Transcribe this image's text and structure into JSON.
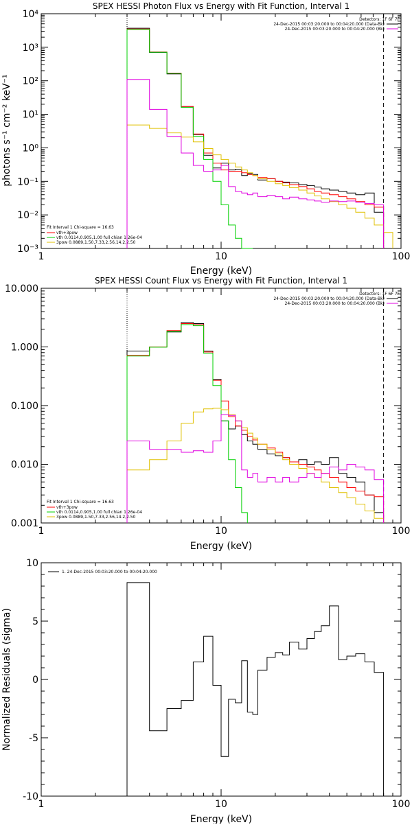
{
  "colors": {
    "black": "#000000",
    "red": "#ff0000",
    "magenta": "#e000e0",
    "green": "#00d000",
    "yellow": "#e0c000"
  },
  "chart_data": [
    {
      "type": "line",
      "title": "SPEX HESSI Photon Flux vs Energy with Fit Function, Interval 1",
      "xlabel": "Energy (keV)",
      "ylabel": "photons s⁻¹ cm⁻² keV⁻¹",
      "xscale": "log",
      "yscale": "log",
      "xlim": [
        1,
        100
      ],
      "ylim": [
        0.001,
        10000
      ],
      "xticks": [
        "1",
        "10",
        "100"
      ],
      "yticks": [
        "10⁻³",
        "10⁻²",
        "10⁻¹",
        "10⁰",
        "10¹",
        "10²",
        "10³",
        "10⁴"
      ],
      "legend_header": "Detectors: 1F 6F 7F",
      "legend": [
        {
          "text": "24-Dec-2015 00:03:20.000 to 00:04:20.000 (Data-Bk)",
          "color": "black"
        },
        {
          "text": "24-Dec-2015 00:03:20.000 to 00:04:20.000 (Bk)",
          "color": "magenta"
        }
      ],
      "fit_info": {
        "line1": "Fit Interval 1   Chi-square = 16.63",
        "items": [
          {
            "text": "vth+3pow",
            "color": "red"
          },
          {
            "text": "vth 0.0114,0.905,1.00  full chian 1.26e-04",
            "color": "green"
          },
          {
            "text": "3pow 0.0889,1.50,7.33,2.56,14.2,2.50",
            "color": "yellow"
          }
        ]
      },
      "vlines": [
        {
          "x": 3,
          "style": "dotted"
        },
        {
          "x": 80,
          "style": "dashed"
        }
      ],
      "series": [
        {
          "name": "Data-Bk",
          "color": "black",
          "edges": [
            3,
            4,
            5,
            6,
            7,
            8,
            9,
            10,
            11,
            12,
            13,
            14,
            15,
            16,
            18,
            20,
            22,
            24,
            27,
            30,
            33,
            36,
            40,
            45,
            50,
            56,
            63,
            71,
            80
          ],
          "values": [
            3700,
            700,
            160,
            17,
            2.5,
            0.6,
            0.25,
            0.35,
            0.22,
            0.23,
            0.15,
            0.17,
            0.16,
            0.11,
            0.12,
            0.1,
            0.095,
            0.09,
            0.08,
            0.075,
            0.068,
            0.06,
            0.055,
            0.05,
            0.045,
            0.04,
            0.045,
            0.012
          ]
        },
        {
          "name": "vth+3pow",
          "color": "red",
          "edges": [
            3,
            4,
            5,
            6,
            7,
            8,
            9,
            10,
            11,
            12,
            13,
            14,
            15,
            16,
            18,
            20,
            22,
            24,
            27,
            30,
            33,
            36,
            40,
            45,
            50,
            56,
            63,
            71,
            80
          ],
          "values": [
            3500,
            720,
            170,
            17,
            2.6,
            0.7,
            0.35,
            0.22,
            0.2,
            0.2,
            0.18,
            0.16,
            0.15,
            0.13,
            0.12,
            0.1,
            0.09,
            0.08,
            0.07,
            0.06,
            0.05,
            0.045,
            0.04,
            0.035,
            0.03,
            0.025,
            0.02,
            0.017
          ]
        },
        {
          "name": "vth",
          "color": "green",
          "edges": [
            3,
            4,
            5,
            6,
            7,
            8,
            9,
            10,
            11,
            12,
            13,
            14,
            15
          ],
          "values": [
            3400,
            710,
            165,
            16,
            2.2,
            0.45,
            0.1,
            0.02,
            0.005,
            0.002,
            0.001,
            0.0008
          ]
        },
        {
          "name": "3pow",
          "color": "yellow",
          "edges": [
            3,
            4,
            5,
            6,
            7,
            8,
            9,
            10,
            11,
            12,
            13,
            14,
            15,
            16,
            18,
            20,
            22,
            24,
            27,
            30,
            33,
            36,
            40,
            45,
            50,
            56,
            63,
            71,
            80,
            90
          ],
          "values": [
            4.8,
            3.8,
            2.8,
            2.1,
            1.5,
            0.95,
            0.62,
            0.45,
            0.35,
            0.27,
            0.22,
            0.18,
            0.15,
            0.12,
            0.1,
            0.085,
            0.075,
            0.065,
            0.055,
            0.045,
            0.037,
            0.03,
            0.025,
            0.02,
            0.016,
            0.012,
            0.008,
            0.005,
            0.003
          ]
        },
        {
          "name": "Bk",
          "color": "magenta",
          "edges": [
            3,
            4,
            5,
            6,
            7,
            8,
            9,
            10,
            11,
            12,
            13,
            14,
            15,
            16,
            18,
            20,
            22,
            24,
            27,
            30,
            33,
            36,
            40,
            45,
            50,
            56,
            63,
            71,
            80
          ],
          "values": [
            110,
            14,
            2.2,
            0.7,
            0.3,
            0.2,
            0.22,
            0.3,
            0.07,
            0.05,
            0.045,
            0.04,
            0.045,
            0.035,
            0.038,
            0.035,
            0.03,
            0.034,
            0.03,
            0.028,
            0.026,
            0.024,
            0.026,
            0.025,
            0.026,
            0.024,
            0.022,
            0.02
          ]
        }
      ]
    },
    {
      "type": "line",
      "title": "SPEX HESSI Count Flux vs Energy with Fit Function, Interval 1",
      "xlabel": "Energy (keV)",
      "xscale": "log",
      "yscale": "log",
      "xlim": [
        1,
        100
      ],
      "ylim": [
        0.001,
        10
      ],
      "xticks": [
        "1",
        "10",
        "100"
      ],
      "yticks": [
        "0.001",
        "0.010",
        "0.100",
        "1.000",
        "10.000"
      ],
      "legend_header": "Detectors: 1F 6F 7F",
      "legend": [
        {
          "text": "24-Dec-2015 00:03:20.000 to 00:04:20.000 (Data-Bk)",
          "color": "black"
        },
        {
          "text": "24-Dec-2015 00:03:20.000 to 00:04:20.000 (Bk)",
          "color": "magenta"
        }
      ],
      "fit_info": {
        "line1": "Fit Interval 1   Chi-square = 16.63",
        "items": [
          {
            "text": "vth+3pow",
            "color": "red"
          },
          {
            "text": "vth 0.0114,0.905,1.00  full chian 1.26e-04",
            "color": "green"
          },
          {
            "text": "3pow 0.0889,1.50,7.33,2.56,14.2,2.50",
            "color": "yellow"
          }
        ]
      },
      "vlines": [
        {
          "x": 3,
          "style": "dotted"
        },
        {
          "x": 80,
          "style": "dashed"
        }
      ],
      "series": [
        {
          "name": "Data-Bk",
          "color": "black",
          "edges": [
            3,
            4,
            5,
            6,
            7,
            8,
            9,
            10,
            11,
            12,
            13,
            14,
            15,
            16,
            18,
            20,
            22,
            24,
            27,
            30,
            33,
            36,
            40,
            45,
            50,
            56,
            63,
            71,
            80
          ],
          "values": [
            0.85,
            1.0,
            1.8,
            2.6,
            2.5,
            0.85,
            0.28,
            0.055,
            0.04,
            0.045,
            0.032,
            0.025,
            0.022,
            0.018,
            0.015,
            0.014,
            0.013,
            0.011,
            0.012,
            0.01,
            0.011,
            0.01,
            0.013,
            0.007,
            0.006,
            0.005,
            0.003,
            0.0015
          ]
        },
        {
          "name": "vth+3pow",
          "color": "red",
          "edges": [
            3,
            4,
            5,
            6,
            7,
            8,
            9,
            10,
            11,
            12,
            13,
            14,
            15,
            16,
            18,
            20,
            22,
            24,
            27,
            30,
            33,
            36,
            40,
            45,
            50,
            56,
            63,
            71,
            80
          ],
          "values": [
            0.72,
            1.0,
            1.9,
            2.5,
            2.4,
            0.82,
            0.27,
            0.12,
            0.065,
            0.045,
            0.038,
            0.03,
            0.026,
            0.022,
            0.019,
            0.016,
            0.013,
            0.011,
            0.01,
            0.009,
            0.008,
            0.007,
            0.006,
            0.005,
            0.004,
            0.0035,
            0.003,
            0.0028
          ]
        },
        {
          "name": "vth",
          "color": "green",
          "edges": [
            3,
            4,
            5,
            6,
            7,
            8,
            9,
            10,
            11,
            12,
            13,
            14
          ],
          "values": [
            0.7,
            0.99,
            1.85,
            2.4,
            2.3,
            0.78,
            0.22,
            0.055,
            0.012,
            0.004,
            0.0015
          ]
        },
        {
          "name": "3pow",
          "color": "yellow",
          "edges": [
            3,
            4,
            5,
            6,
            7,
            8,
            9,
            10,
            11,
            12,
            13,
            14,
            15,
            16,
            18,
            20,
            22,
            24,
            27,
            30,
            33,
            36,
            40,
            45,
            50,
            56,
            63,
            71,
            80
          ],
          "values": [
            0.008,
            0.012,
            0.025,
            0.05,
            0.078,
            0.088,
            0.09,
            0.085,
            0.07,
            0.055,
            0.042,
            0.034,
            0.028,
            0.022,
            0.018,
            0.015,
            0.012,
            0.01,
            0.0085,
            0.007,
            0.006,
            0.005,
            0.004,
            0.0033,
            0.0027,
            0.0021,
            0.0016,
            0.0012
          ]
        },
        {
          "name": "Bk",
          "color": "magenta",
          "edges": [
            3,
            4,
            5,
            6,
            7,
            8,
            9,
            10,
            11,
            12,
            13,
            14,
            15,
            16,
            18,
            20,
            22,
            24,
            27,
            30,
            33,
            36,
            40,
            45,
            50,
            56,
            63,
            71,
            80
          ],
          "values": [
            0.025,
            0.018,
            0.018,
            0.016,
            0.017,
            0.016,
            0.025,
            0.07,
            0.068,
            0.055,
            0.008,
            0.006,
            0.007,
            0.005,
            0.006,
            0.005,
            0.006,
            0.005,
            0.006,
            0.007,
            0.006,
            0.007,
            0.009,
            0.008,
            0.01,
            0.009,
            0.008,
            0.0055
          ]
        }
      ]
    },
    {
      "type": "line",
      "title": "",
      "xlabel": "Energy (keV)",
      "ylabel": "Normalized Residuals (sigma)",
      "xscale": "log",
      "yscale": "linear",
      "xlim": [
        1,
        100
      ],
      "ylim": [
        -10,
        10
      ],
      "xticks": [
        "1",
        "10",
        "100"
      ],
      "yticks": [
        "-10",
        "-5",
        "0",
        "5",
        "10"
      ],
      "legend": [
        {
          "text": "1. 24-Dec-2015 00:03:20.000 to 00:04:20.000",
          "color": "black"
        }
      ],
      "series": [
        {
          "name": "residuals",
          "color": "black",
          "edges": [
            3,
            4,
            5,
            6,
            7,
            8,
            9,
            10,
            11,
            12,
            13,
            14,
            15,
            16,
            18,
            20,
            22,
            24,
            27,
            30,
            33,
            36,
            40,
            45,
            50,
            56,
            63,
            71,
            80
          ],
          "values": [
            8.3,
            -4.4,
            -2.5,
            -1.8,
            1.5,
            3.7,
            -0.5,
            -6.6,
            -1.7,
            -2.0,
            1.6,
            -2.8,
            -3.0,
            0.8,
            1.9,
            2.3,
            2.1,
            3.2,
            2.6,
            3.5,
            4.1,
            4.6,
            6.3,
            1.7,
            2.0,
            2.2,
            1.5,
            0.6
          ]
        }
      ]
    }
  ]
}
